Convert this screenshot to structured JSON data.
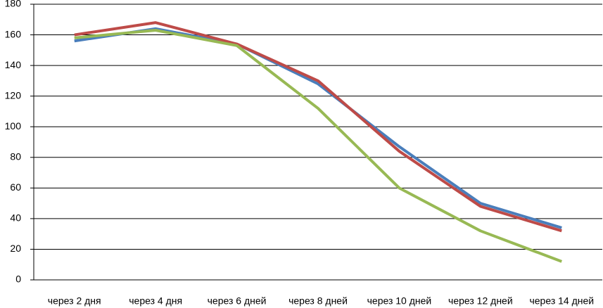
{
  "chart_data": {
    "type": "line",
    "categories": [
      "через 2 дня",
      "через 4 дня",
      "через 6 дней",
      "через 8 дней",
      "через 10 дней",
      "через 12 дней",
      "через 14 дней"
    ],
    "series": [
      {
        "color": "#4a7ebb",
        "values": [
          156,
          164,
          154,
          128,
          87,
          50,
          34
        ]
      },
      {
        "color": "#be4b48",
        "values": [
          160,
          168,
          154,
          130,
          84,
          48,
          32
        ]
      },
      {
        "color": "#98b954",
        "values": [
          158,
          163,
          153,
          112,
          60,
          32,
          12
        ]
      }
    ],
    "ylim": [
      0,
      180
    ],
    "yticks": [
      0,
      20,
      40,
      60,
      80,
      100,
      120,
      140,
      160,
      180
    ],
    "grid": true
  }
}
